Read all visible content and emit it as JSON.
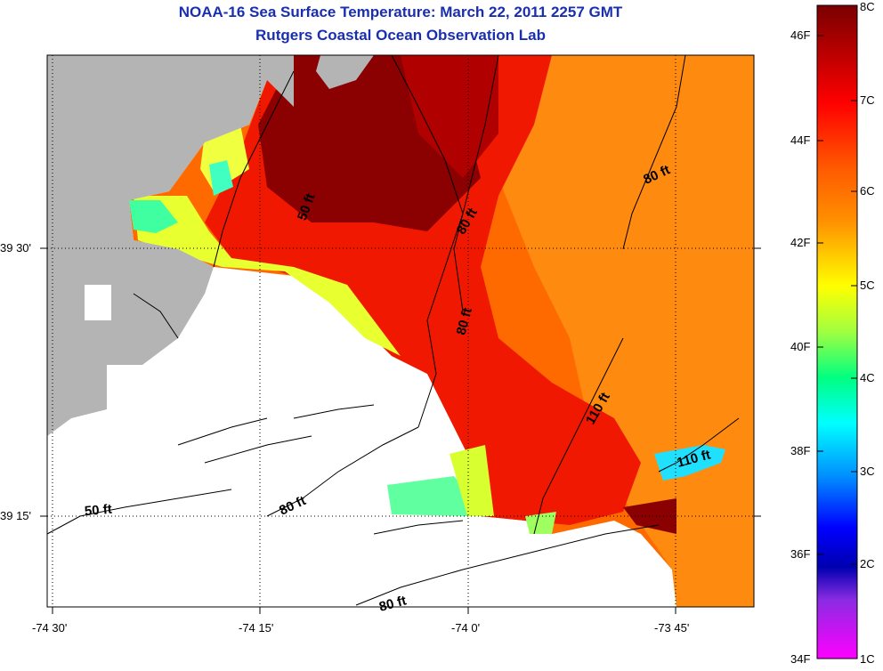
{
  "header": {
    "title": "NOAA-16 Sea Surface Temperature:  March 22, 2011 2257 GMT",
    "subtitle": "Rutgers Coastal Ocean Observation Lab"
  },
  "axes": {
    "x_ticks": [
      "-74 30'",
      "-74 15'",
      "-74 0'",
      "-73 45'"
    ],
    "y_ticks": [
      "39 30'",
      "39 15'"
    ]
  },
  "contour_labels": [
    "50 ft",
    "80 ft",
    "80 ft",
    "80 ft",
    "110 ft",
    "110 ft",
    "80 ft",
    "50 ft",
    "80 ft"
  ],
  "colorbar": {
    "celsius": [
      "8C",
      "7C",
      "6C",
      "5C",
      "4C",
      "3C",
      "2C",
      "1C"
    ],
    "fahrenheit": [
      "46F",
      "44F",
      "42F",
      "40F",
      "38F",
      "36F",
      "34F"
    ]
  },
  "colors": {
    "land": "#b4b4b4",
    "title": "#1a2fb0",
    "hot": "#8b0000",
    "warm": "#ff2000",
    "mid": "#ff8000",
    "cool": "#ffff00",
    "cold": "#00ffff"
  }
}
